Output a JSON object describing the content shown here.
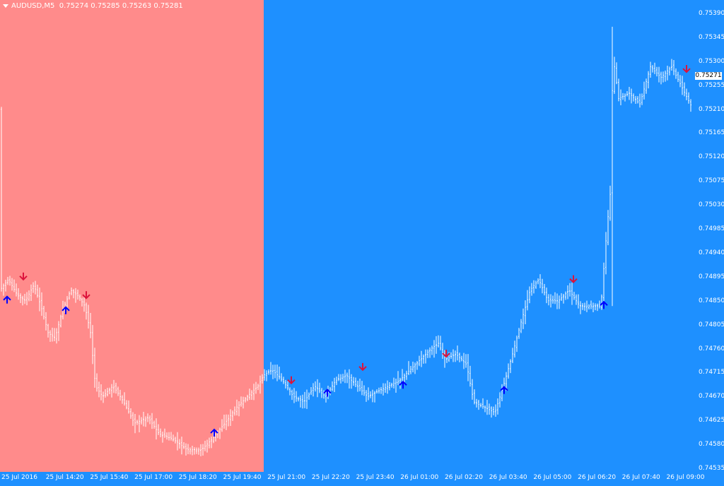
{
  "window": {
    "symbol": "AUDUSD,M5",
    "ohlc": "0.75274 0.75285 0.75263 0.75281",
    "current_price_label": "0.75271"
  },
  "colors": {
    "left_zone": "#ff8b8b",
    "right_zone": "#1e90ff",
    "bars": "#ffffff",
    "arrow_up": "#0000ff",
    "arrow_down": "#dc143c"
  },
  "price_axis": {
    "labels": [
      "0.75390",
      "0.75345",
      "0.75300",
      "0.75255",
      "0.75210",
      "0.75165",
      "0.75120",
      "0.75075",
      "0.75030",
      "0.74985",
      "0.74940",
      "0.74895",
      "0.74850",
      "0.74805",
      "0.74760",
      "0.74715",
      "0.74670",
      "0.74625",
      "0.74580",
      "0.74535"
    ]
  },
  "time_axis": {
    "labels": [
      "25 Jul 2016",
      "25 Jul 14:20",
      "25 Jul 15:40",
      "25 Jul 17:00",
      "25 Jul 18:20",
      "25 Jul 19:40",
      "25 Jul 21:00",
      "25 Jul 22:20",
      "25 Jul 23:40",
      "26 Jul 01:00",
      "26 Jul 02:20",
      "26 Jul 03:40",
      "26 Jul 05:00",
      "26 Jul 06:20",
      "26 Jul 07:40",
      "26 Jul 09:00"
    ]
  },
  "chart_data": {
    "type": "ohlc",
    "symbol": "AUDUSD",
    "timeframe": "M5",
    "ylim": [
      0.74535,
      0.7539
    ],
    "close_path": [
      [
        0,
        0.7487
      ],
      [
        12,
        0.7489
      ],
      [
        25,
        0.7486
      ],
      [
        36,
        0.7485
      ],
      [
        48,
        0.7488
      ],
      [
        58,
        0.7484
      ],
      [
        68,
        0.7479
      ],
      [
        78,
        0.7478
      ],
      [
        88,
        0.7483
      ],
      [
        100,
        0.7487
      ],
      [
        110,
        0.7486
      ],
      [
        120,
        0.7484
      ],
      [
        128,
        0.7479
      ],
      [
        135,
        0.7469
      ],
      [
        145,
        0.7467
      ],
      [
        160,
        0.7469
      ],
      [
        175,
        0.7466
      ],
      [
        190,
        0.7462
      ],
      [
        210,
        0.7463
      ],
      [
        225,
        0.746
      ],
      [
        245,
        0.7459
      ],
      [
        265,
        0.7457
      ],
      [
        285,
        0.7457
      ],
      [
        300,
        0.7459
      ],
      [
        318,
        0.7462
      ],
      [
        335,
        0.7465
      ],
      [
        350,
        0.7467
      ],
      [
        365,
        0.7469
      ],
      [
        373,
        0.7471
      ],
      [
        385,
        0.7472
      ],
      [
        400,
        0.747
      ],
      [
        415,
        0.7467
      ],
      [
        430,
        0.7466
      ],
      [
        445,
        0.7469
      ],
      [
        460,
        0.7467
      ],
      [
        475,
        0.747
      ],
      [
        490,
        0.7471
      ],
      [
        505,
        0.7469
      ],
      [
        520,
        0.7467
      ],
      [
        535,
        0.7468
      ],
      [
        550,
        0.7469
      ],
      [
        565,
        0.747
      ],
      [
        580,
        0.7472
      ],
      [
        595,
        0.7474
      ],
      [
        610,
        0.7476
      ],
      [
        620,
        0.7477
      ],
      [
        630,
        0.7474
      ],
      [
        645,
        0.7475
      ],
      [
        660,
        0.7473
      ],
      [
        670,
        0.7466
      ],
      [
        685,
        0.7465
      ],
      [
        700,
        0.7464
      ],
      [
        712,
        0.7469
      ],
      [
        725,
        0.7475
      ],
      [
        737,
        0.7481
      ],
      [
        750,
        0.7487
      ],
      [
        762,
        0.7489
      ],
      [
        775,
        0.7485
      ],
      [
        790,
        0.7485
      ],
      [
        805,
        0.7487
      ],
      [
        820,
        0.7484
      ],
      [
        835,
        0.7484
      ],
      [
        850,
        0.7484
      ],
      [
        858,
        0.7498
      ],
      [
        863,
        0.7505
      ],
      [
        867,
        0.7531
      ],
      [
        875,
        0.7523
      ],
      [
        890,
        0.7524
      ],
      [
        905,
        0.7522
      ],
      [
        920,
        0.7529
      ],
      [
        935,
        0.7527
      ],
      [
        950,
        0.7529
      ],
      [
        965,
        0.7525
      ],
      [
        980,
        0.7521
      ]
    ],
    "signals": [
      {
        "type": "buy",
        "time_x": 10,
        "price": 0.7485
      },
      {
        "type": "sell",
        "time_x": 33,
        "price": 0.74895
      },
      {
        "type": "buy",
        "time_x": 93,
        "price": 0.7483
      },
      {
        "type": "sell",
        "time_x": 122,
        "price": 0.7486
      },
      {
        "type": "buy",
        "time_x": 303,
        "price": 0.746
      },
      {
        "type": "sell",
        "time_x": 412,
        "price": 0.747
      },
      {
        "type": "buy",
        "time_x": 463,
        "price": 0.74675
      },
      {
        "type": "sell",
        "time_x": 513,
        "price": 0.74725
      },
      {
        "type": "buy",
        "time_x": 570,
        "price": 0.7469
      },
      {
        "type": "sell",
        "time_x": 631,
        "price": 0.7475
      },
      {
        "type": "buy",
        "time_x": 713,
        "price": 0.7468
      },
      {
        "type": "sell",
        "time_x": 811,
        "price": 0.7489
      },
      {
        "type": "buy",
        "time_x": 854,
        "price": 0.7484
      },
      {
        "type": "sell",
        "time_x": 971,
        "price": 0.75285
      }
    ],
    "grid": false,
    "legend": "none"
  }
}
